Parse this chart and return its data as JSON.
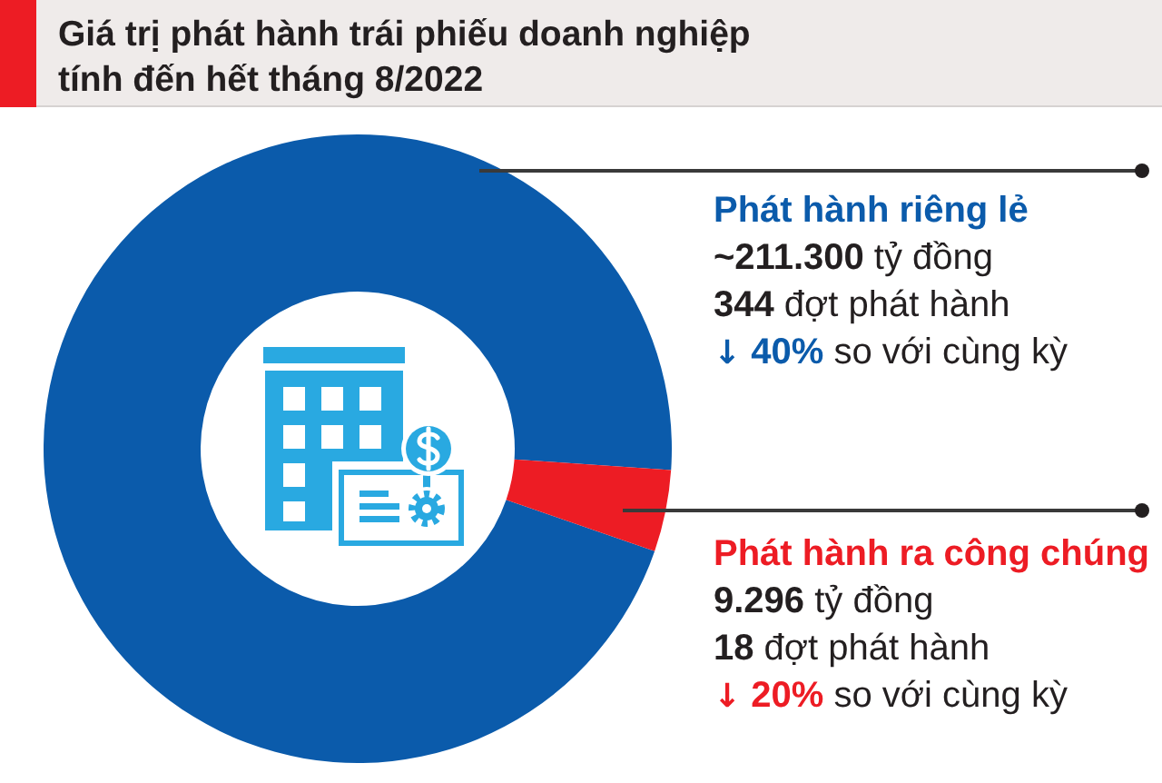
{
  "chart_data": {
    "type": "donut",
    "title": "Giá trị phát hành trái phiếu doanh nghiệp tính đến hết tháng 8/2022",
    "categories": [
      "Phát hành riêng lẻ",
      "Phát hành ra công chúng"
    ],
    "values": [
      95.8,
      4.2
    ],
    "colors": [
      "#0b5bab",
      "#ed1c24"
    ],
    "annotations": [
      "~211.300 tỷ đồng",
      "344 đợt phát hành",
      "↓ 40% so với cùng kỳ",
      "9.296 tỷ đồng",
      "18 đợt phát hành",
      "↓ 20% so với cùng kỳ"
    ]
  }
}
